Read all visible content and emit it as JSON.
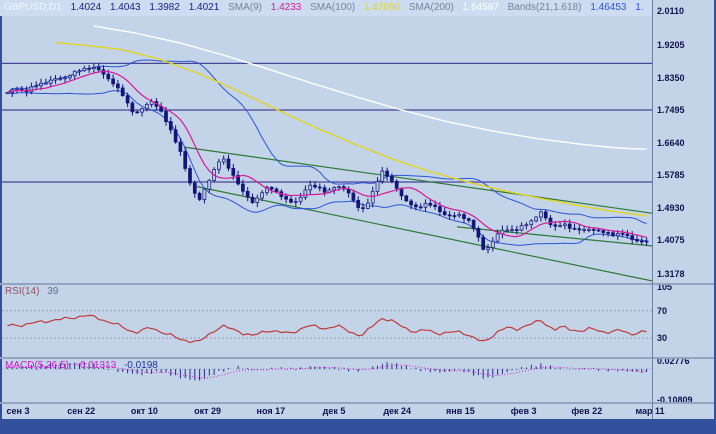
{
  "header": {
    "symbol": "GBPUSD,D1",
    "open": "1.4024",
    "high": "1.4043",
    "low": "1.3982",
    "close": "1.4021",
    "sma9_label": "SMA(9)",
    "sma9_value": "1.4233",
    "sma100_label": "SMA(100)",
    "sma100_value": "1.47096",
    "sma200_label": "SMA(200)",
    "sma200_value": "1.64587",
    "bands_label": "Bands(21,1.618)",
    "bands_value": "1.46453",
    "bands_value2": "1."
  },
  "rsi": {
    "label": "RSI(14)",
    "value": "39"
  },
  "macd": {
    "label": "MACD(5,26,5)",
    "value": "-0.01313",
    "signal": "-0.0198"
  },
  "price_axis": [
    "2.0110",
    "1.9205",
    "1.8350",
    "1.7495",
    "1.6640",
    "1.5785",
    "1.4930",
    "1.4075",
    "1.3178"
  ],
  "rsi_axis": [
    "105",
    "70",
    "30"
  ],
  "macd_axis": [
    "0.02776",
    "-0.10809"
  ],
  "time_axis": [
    "сен 3",
    "сен 22",
    "окт 10",
    "окт 29",
    "ноя 17",
    "дек 5",
    "дек 24",
    "янв 15",
    "фев 3",
    "фев 22",
    "мар 11"
  ],
  "colors": {
    "header_symbol": "#f2f5fb",
    "ohlc": "#1c1c86",
    "ind_label": "#76839d",
    "sma9": "#d6199a",
    "sma100": "#e3d522",
    "sma200": "#ffffff",
    "bands": "#2c55d9",
    "candle": "#14147a",
    "bull": "#b9cbe3",
    "level": "#4a4596",
    "trend": "#2d7a35",
    "rsi": "#c03a3a",
    "rsi_label": "#96525e",
    "rsi_value": "#5f6f8f",
    "guide": "#8f9cb8",
    "macd_hist": "#2a2a8e",
    "macd_signal": "#d024d0",
    "macd_label": "#cb1ecb",
    "macd_signal_text": "#20339b",
    "axis_text": "#10104f",
    "panel_bg": "#c3d4e8",
    "frame": "#32509b"
  },
  "chart_data": [
    {
      "type": "candlestick",
      "title": "GBPUSD,D1",
      "bars": 134,
      "ohlc_last": {
        "open": 1.4024,
        "high": 1.4043,
        "low": 1.3982,
        "close": 1.4021
      },
      "y_ticks": [
        2.011,
        1.9205,
        1.835,
        1.7495,
        1.664,
        1.5785,
        1.493,
        1.4075,
        1.3178
      ],
      "x_tick_labels": [
        "сен 3",
        "сен 22",
        "окт 10",
        "окт 29",
        "ноя 17",
        "дек 5",
        "дек 24",
        "янв 15",
        "фев 3",
        "фев 22",
        "мар 11"
      ],
      "sma9_last": 1.4233,
      "sma100_last": 1.47096,
      "sma200_last": 1.64587,
      "bands_upper_last": 1.46453,
      "close_path": [
        [
          0,
          1.795
        ],
        [
          0.015,
          1.805
        ],
        [
          0.03,
          1.8
        ],
        [
          0.05,
          1.818
        ],
        [
          0.07,
          1.828
        ],
        [
          0.09,
          1.835
        ],
        [
          0.11,
          1.852
        ],
        [
          0.125,
          1.862
        ],
        [
          0.14,
          1.858
        ],
        [
          0.155,
          1.838
        ],
        [
          0.165,
          1.82
        ],
        [
          0.18,
          1.79
        ],
        [
          0.19,
          1.762
        ],
        [
          0.2,
          1.736
        ],
        [
          0.215,
          1.76
        ],
        [
          0.225,
          1.775
        ],
        [
          0.24,
          1.745
        ],
        [
          0.255,
          1.7
        ],
        [
          0.27,
          1.64
        ],
        [
          0.285,
          1.56
        ],
        [
          0.3,
          1.51
        ],
        [
          0.31,
          1.545
        ],
        [
          0.325,
          1.6
        ],
        [
          0.335,
          1.625
        ],
        [
          0.345,
          1.6
        ],
        [
          0.36,
          1.56
        ],
        [
          0.37,
          1.528
        ],
        [
          0.385,
          1.505
        ],
        [
          0.395,
          1.528
        ],
        [
          0.41,
          1.548
        ],
        [
          0.425,
          1.53
        ],
        [
          0.44,
          1.505
        ],
        [
          0.455,
          1.512
        ],
        [
          0.47,
          1.548
        ],
        [
          0.485,
          1.55
        ],
        [
          0.5,
          1.53
        ],
        [
          0.515,
          1.552
        ],
        [
          0.53,
          1.54
        ],
        [
          0.545,
          1.5
        ],
        [
          0.555,
          1.488
        ],
        [
          0.565,
          1.508
        ],
        [
          0.575,
          1.545
        ],
        [
          0.585,
          1.592
        ],
        [
          0.595,
          1.575
        ],
        [
          0.61,
          1.54
        ],
        [
          0.625,
          1.508
        ],
        [
          0.64,
          1.49
        ],
        [
          0.655,
          1.505
        ],
        [
          0.665,
          1.498
        ],
        [
          0.68,
          1.478
        ],
        [
          0.695,
          1.47
        ],
        [
          0.71,
          1.472
        ],
        [
          0.725,
          1.455
        ],
        [
          0.735,
          1.418
        ],
        [
          0.745,
          1.382
        ],
        [
          0.755,
          1.392
        ],
        [
          0.765,
          1.42
        ],
        [
          0.78,
          1.438
        ],
        [
          0.795,
          1.432
        ],
        [
          0.81,
          1.448
        ],
        [
          0.825,
          1.465
        ],
        [
          0.835,
          1.48
        ],
        [
          0.845,
          1.458
        ],
        [
          0.855,
          1.442
        ],
        [
          0.87,
          1.448
        ],
        [
          0.885,
          1.438
        ],
        [
          0.9,
          1.432
        ],
        [
          0.915,
          1.438
        ],
        [
          0.93,
          1.428
        ],
        [
          0.945,
          1.422
        ],
        [
          0.96,
          1.425
        ],
        [
          0.975,
          1.412
        ],
        [
          0.99,
          1.404
        ],
        [
          1,
          1.402
        ]
      ],
      "sma100_path": [
        [
          0.07,
          1.928
        ],
        [
          0.12,
          1.92
        ],
        [
          0.18,
          1.908
        ],
        [
          0.24,
          1.882
        ],
        [
          0.3,
          1.845
        ],
        [
          0.36,
          1.8
        ],
        [
          0.42,
          1.752
        ],
        [
          0.48,
          1.705
        ],
        [
          0.54,
          1.662
        ],
        [
          0.6,
          1.622
        ],
        [
          0.66,
          1.588
        ],
        [
          0.72,
          1.56
        ],
        [
          0.78,
          1.536
        ],
        [
          0.84,
          1.515
        ],
        [
          0.9,
          1.496
        ],
        [
          0.95,
          1.482
        ],
        [
          1,
          1.471
        ]
      ],
      "sma200_path": [
        [
          0.13,
          1.972
        ],
        [
          0.2,
          1.952
        ],
        [
          0.27,
          1.926
        ],
        [
          0.34,
          1.893
        ],
        [
          0.41,
          1.856
        ],
        [
          0.48,
          1.818
        ],
        [
          0.55,
          1.782
        ],
        [
          0.62,
          1.748
        ],
        [
          0.69,
          1.718
        ],
        [
          0.76,
          1.694
        ],
        [
          0.83,
          1.674
        ],
        [
          0.9,
          1.659
        ],
        [
          0.95,
          1.65
        ],
        [
          1,
          1.646
        ]
      ],
      "bands": {
        "period": 21,
        "deviation": 1.618
      },
      "levels": [
        1.872,
        1.7495,
        1.56
      ],
      "trendlines": [
        [
          [
            0.28,
            1.652
          ],
          [
            1,
            1.478
          ]
        ],
        [
          [
            0.3,
            1.548
          ],
          [
            1,
            1.3
          ]
        ],
        [
          [
            0.7,
            1.442
          ],
          [
            1,
            1.392
          ]
        ]
      ]
    },
    {
      "type": "line",
      "name": "RSI(14)",
      "last": 39,
      "guides": [
        70,
        30
      ],
      "axis_labels": [
        105,
        70,
        30
      ],
      "path": [
        [
          0,
          48
        ],
        [
          0.03,
          50
        ],
        [
          0.06,
          55
        ],
        [
          0.09,
          58
        ],
        [
          0.12,
          63
        ],
        [
          0.14,
          60
        ],
        [
          0.17,
          50
        ],
        [
          0.2,
          38
        ],
        [
          0.225,
          45
        ],
        [
          0.25,
          36
        ],
        [
          0.27,
          28
        ],
        [
          0.3,
          24
        ],
        [
          0.325,
          42
        ],
        [
          0.335,
          48
        ],
        [
          0.36,
          40
        ],
        [
          0.385,
          33
        ],
        [
          0.41,
          42
        ],
        [
          0.44,
          36
        ],
        [
          0.47,
          48
        ],
        [
          0.5,
          44
        ],
        [
          0.515,
          48
        ],
        [
          0.545,
          36
        ],
        [
          0.555,
          33
        ],
        [
          0.585,
          60
        ],
        [
          0.6,
          55
        ],
        [
          0.625,
          44
        ],
        [
          0.64,
          38
        ],
        [
          0.655,
          42
        ],
        [
          0.68,
          36
        ],
        [
          0.71,
          40
        ],
        [
          0.735,
          27
        ],
        [
          0.745,
          24
        ],
        [
          0.765,
          38
        ],
        [
          0.78,
          45
        ],
        [
          0.795,
          43
        ],
        [
          0.825,
          52
        ],
        [
          0.835,
          56
        ],
        [
          0.855,
          42
        ],
        [
          0.87,
          46
        ],
        [
          0.885,
          42
        ],
        [
          0.9,
          40
        ],
        [
          0.915,
          44
        ],
        [
          0.93,
          40
        ],
        [
          0.945,
          38
        ],
        [
          0.96,
          42
        ],
        [
          0.975,
          36
        ],
        [
          1,
          39
        ]
      ]
    },
    {
      "type": "bar",
      "name": "MACD(5,26,5)",
      "last": -0.01313,
      "signal_last": -0.0198,
      "axis_labels": [
        0.02776,
        -0.10809
      ],
      "path": [
        [
          0,
          0.005
        ],
        [
          0.05,
          0.012
        ],
        [
          0.09,
          0.02
        ],
        [
          0.12,
          0.022
        ],
        [
          0.15,
          0.005
        ],
        [
          0.18,
          -0.012
        ],
        [
          0.21,
          -0.02
        ],
        [
          0.24,
          -0.008
        ],
        [
          0.27,
          -0.03
        ],
        [
          0.3,
          -0.042
        ],
        [
          0.33,
          -0.01
        ],
        [
          0.36,
          0.008
        ],
        [
          0.39,
          -0.004
        ],
        [
          0.42,
          0.004
        ],
        [
          0.45,
          0
        ],
        [
          0.48,
          0.01
        ],
        [
          0.51,
          0.004
        ],
        [
          0.545,
          -0.008
        ],
        [
          0.57,
          0.006
        ],
        [
          0.595,
          0.024
        ],
        [
          0.62,
          0.012
        ],
        [
          0.65,
          -0.006
        ],
        [
          0.68,
          -0.012
        ],
        [
          0.71,
          -0.004
        ],
        [
          0.735,
          -0.024
        ],
        [
          0.75,
          -0.034
        ],
        [
          0.78,
          -0.012
        ],
        [
          0.81,
          0.008
        ],
        [
          0.835,
          0.016
        ],
        [
          0.86,
          0.004
        ],
        [
          0.885,
          -0.002
        ],
        [
          0.91,
          0.002
        ],
        [
          0.935,
          -0.004
        ],
        [
          0.96,
          -0.006
        ],
        [
          0.98,
          -0.01
        ],
        [
          1,
          -0.013
        ]
      ]
    }
  ]
}
